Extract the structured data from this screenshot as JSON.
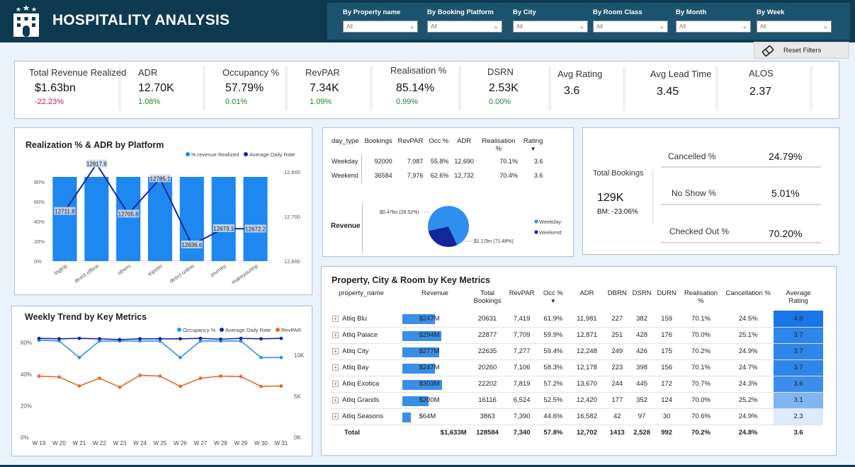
{
  "header": {
    "title": "HOSPITALITY ANALYSIS",
    "filters": [
      {
        "label": "By Property name",
        "value": "All"
      },
      {
        "label": "By Booking Platform",
        "value": "All"
      },
      {
        "label": "By City",
        "value": "All"
      },
      {
        "label": "By Room Class",
        "value": "All"
      },
      {
        "label": "By Month",
        "value": "All"
      },
      {
        "label": "By Week",
        "value": "All"
      }
    ],
    "reset_label": "Reset Filters"
  },
  "kpis": [
    {
      "label": "Total Revenue Realized",
      "value": "$1.63bn",
      "delta": "-22.23%"
    },
    {
      "label": "ADR",
      "value": "12.70K",
      "delta": "1.08%"
    },
    {
      "label": "Occupancy %",
      "value": "57.79%",
      "delta": "0.01%"
    },
    {
      "label": "RevPAR",
      "value": "7.34K",
      "delta": "1.09%"
    },
    {
      "label": "Realisation %",
      "value": "85.14%",
      "delta": "0.99%"
    },
    {
      "label": "DSRN",
      "value": "2.53K",
      "delta": "0.00%"
    },
    {
      "label": "Avg Rating",
      "value": "3.6"
    },
    {
      "label": "Avg Lead Time",
      "value": "3.45"
    },
    {
      "label": "ALOS",
      "value": "2.37"
    }
  ],
  "day_type": {
    "headers": [
      "day_type",
      "Bookings",
      "RevPAR",
      "Occ %",
      "ADR",
      "Realisation %",
      "Rating"
    ],
    "rows": [
      [
        "Weekday",
        "92000",
        "7,087",
        "55.8%",
        "12,690",
        "70.1%",
        "3.6"
      ],
      [
        "Weekend",
        "36584",
        "7,976",
        "62.6%",
        "12,732",
        "70.4%",
        "3.6"
      ]
    ],
    "revenue_label": "Revenue"
  },
  "bookings": {
    "title": "Total Bookings",
    "value": "129K",
    "bm": "BM: -23.06%",
    "cancelled_label": "Cancelled %",
    "cancelled_value": "24.79%",
    "noshow_label": "No Show %",
    "noshow_value": "5.01%",
    "checkedout_label": "Checked Out %",
    "checkedout_value": "70.20%"
  },
  "property_table": {
    "title": "Property, City & Room by Key Metrics",
    "headers": [
      "property_name",
      "Revenue",
      "Total Bookings",
      "RevPAR",
      "Occ %",
      "ADR",
      "DBRN",
      "DSRN",
      "DURN",
      "Realisation %",
      "Cancellation %",
      "Average Rating"
    ],
    "rows": [
      {
        "name": "Atliq Blu",
        "revenue": "$247M",
        "rev_m": 247,
        "bookings": "20631",
        "revpar": "7,419",
        "occ": "61.9%",
        "adr": "11,981",
        "dbrn": "227",
        "dsrn": "382",
        "durn": "159",
        "real": "70.1%",
        "canc": "24.5%",
        "rating": "4.0",
        "rating_color": "#1976e6"
      },
      {
        "name": "Atliq Palace",
        "revenue": "$294M",
        "rev_m": 294,
        "bookings": "22877",
        "revpar": "7,709",
        "occ": "59.9%",
        "adr": "12,871",
        "dbrn": "251",
        "dsrn": "428",
        "durn": "176",
        "real": "70.0%",
        "canc": "25.1%",
        "rating": "3.7",
        "rating_color": "#2f86ea"
      },
      {
        "name": "Atliq City",
        "revenue": "$277M",
        "rev_m": 277,
        "bookings": "22635",
        "revpar": "7,277",
        "occ": "59.4%",
        "adr": "12,248",
        "dbrn": "249",
        "dsrn": "426",
        "durn": "175",
        "real": "70.2%",
        "canc": "24.9%",
        "rating": "3.7",
        "rating_color": "#2f86ea"
      },
      {
        "name": "Atliq Bay",
        "revenue": "$247M",
        "rev_m": 247,
        "bookings": "20260",
        "revpar": "7,106",
        "occ": "58.3%",
        "adr": "12,178",
        "dbrn": "223",
        "dsrn": "398",
        "durn": "156",
        "real": "70.1%",
        "canc": "24.7%",
        "rating": "3.7",
        "rating_color": "#2f86ea"
      },
      {
        "name": "Atliq Exotica",
        "revenue": "$303M",
        "rev_m": 303,
        "bookings": "22202",
        "revpar": "7,819",
        "occ": "57.2%",
        "adr": "13,670",
        "dbrn": "244",
        "dsrn": "445",
        "durn": "172",
        "real": "70.7%",
        "canc": "24.3%",
        "rating": "3.6",
        "rating_color": "#3d8eec"
      },
      {
        "name": "Atliq Grands",
        "revenue": "$200M",
        "rev_m": 200,
        "bookings": "16116",
        "revpar": "6,524",
        "occ": "52.5%",
        "adr": "12,420",
        "dbrn": "177",
        "dsrn": "352",
        "durn": "124",
        "real": "70.0%",
        "canc": "25.2%",
        "rating": "3.1",
        "rating_color": "#7fb5f2"
      },
      {
        "name": "Atliq Seasons",
        "revenue": "$64M",
        "rev_m": 64,
        "bookings": "3863",
        "revpar": "7,390",
        "occ": "44.6%",
        "adr": "16,582",
        "dbrn": "42",
        "dsrn": "97",
        "durn": "30",
        "real": "70.6%",
        "canc": "24.9%",
        "rating": "2.3",
        "rating_color": "#dcebfb"
      }
    ],
    "total": {
      "name": "Total",
      "revenue": "$1,633M",
      "bookings": "128584",
      "revpar": "7,340",
      "occ": "57.8%",
      "adr": "12,702",
      "dbrn": "1413",
      "dsrn": "2,528",
      "durn": "992",
      "real": "70.2%",
      "canc": "24.8%",
      "rating": "3.6"
    }
  },
  "chart_data": [
    {
      "type": "bar",
      "title": "Realization % & ADR by Platform",
      "legend": [
        "% revenue Realized",
        "Average Daily Rate"
      ],
      "legend_position": "top-right",
      "categories": [
        "logtrip",
        "direct offline",
        "others",
        "tripster",
        "direct online",
        "journey",
        "makeyourtrip"
      ],
      "y_ticks": [
        "0%",
        "20%",
        "40%",
        "60%",
        "80%"
      ],
      "y2_ticks": [
        "12,600",
        "12,700",
        "12,800"
      ],
      "ylim": [
        0,
        90
      ],
      "y2lim": [
        12600,
        12800
      ],
      "series": [
        {
          "name": "% revenue Realized",
          "type": "bar",
          "values": [
            85,
            85,
            85,
            85,
            85,
            85,
            85
          ]
        },
        {
          "name": "Average Daily Rate",
          "type": "line",
          "values": [
            12711.8,
            12817.9,
            12705.8,
            12785.1,
            12636.6,
            12673.1,
            12672.2
          ],
          "labels": [
            "12711.8",
            "12817.9",
            "12705.8",
            "12785.1",
            "12636.6",
            "12673.1",
            "12672.2"
          ]
        }
      ]
    },
    {
      "type": "line",
      "title": "Weekly Trend by Key Metrics",
      "legend": [
        "Occupancy %",
        "Average Daily Rate",
        "RevPAR"
      ],
      "legend_position": "top-right",
      "x": [
        "W 19",
        "W 20",
        "W 21",
        "W 22",
        "W 23",
        "W 24",
        "W 25",
        "W 26",
        "W 27",
        "W 28",
        "W 29",
        "W 30",
        "W 31"
      ],
      "y_ticks": [
        "0%",
        "20%",
        "40%",
        "60%"
      ],
      "y2_ticks": [
        "0K",
        "5K",
        "10K"
      ],
      "ylim": [
        0,
        65
      ],
      "y2lim": [
        0,
        12500
      ],
      "series": [
        {
          "name": "Occupancy %",
          "axis": "left",
          "values": [
            61.5,
            61,
            50.5,
            61,
            61,
            61,
            61,
            50.5,
            61,
            61,
            61,
            50.5,
            50.5
          ]
        },
        {
          "name": "Average Daily Rate",
          "axis": "right",
          "values": [
            12050,
            12000,
            12050,
            12000,
            11900,
            12000,
            12000,
            12000,
            12050,
            11950,
            12050,
            12000,
            12050
          ]
        },
        {
          "name": "RevPAR",
          "axis": "right",
          "values": [
            7450,
            7350,
            6250,
            7200,
            6100,
            7550,
            7450,
            6200,
            7200,
            7450,
            7400,
            6200,
            6250
          ]
        }
      ]
    },
    {
      "type": "pie",
      "title": "Revenue",
      "legend": [
        "Weekday",
        "Weekend"
      ],
      "legend_position": "right",
      "slices": [
        {
          "label": "Weekday",
          "value": 71.48,
          "text": "$1.17bn (71.48%)",
          "color": "#2d8ff0"
        },
        {
          "label": "Weekend",
          "value": 28.52,
          "text": "$0.47bn (28.52%)",
          "color": "#13279a"
        }
      ]
    }
  ],
  "colors": {
    "header": "#0d3a50",
    "bar": "#1e88f0",
    "adr": "#13279a",
    "occ": "#2d8ff0",
    "revpar": "#e66a2c"
  }
}
